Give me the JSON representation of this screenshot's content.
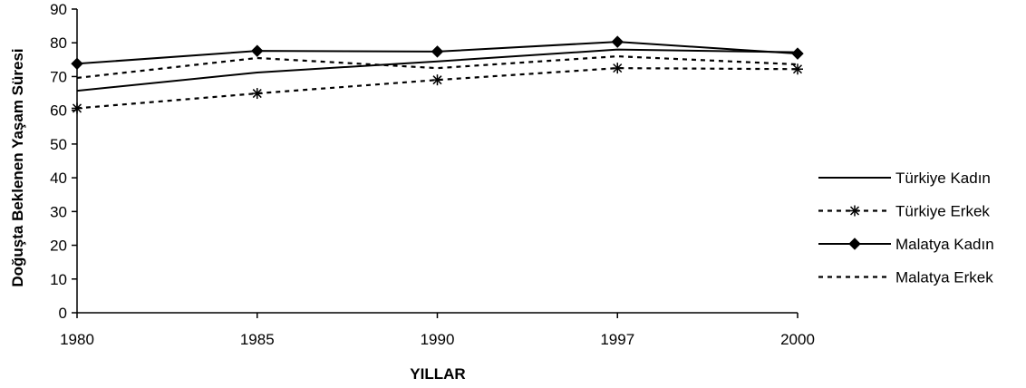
{
  "chart_data": {
    "type": "line",
    "title": "",
    "xlabel": "YILLAR",
    "ylabel": "Doğuşta Beklenen Yaşam Süresi",
    "categories": [
      "1980",
      "1985",
      "1990",
      "1997",
      "2000"
    ],
    "ylim": [
      0,
      90
    ],
    "yticks": [
      0,
      10,
      20,
      30,
      40,
      50,
      60,
      70,
      80,
      90
    ],
    "grid": false,
    "legend_position": "right",
    "series": [
      {
        "name": "Türkiye Kadın",
        "values": [
          65.8,
          71.2,
          74.5,
          78.0,
          77.2
        ],
        "line": "solid",
        "marker": "none",
        "color": "#000000"
      },
      {
        "name": "Türkiye Erkek",
        "values": [
          60.6,
          65.0,
          69.0,
          72.5,
          72.2
        ],
        "line": "dotted",
        "marker": "asterisk",
        "color": "#000000"
      },
      {
        "name": "Malatya Kadın",
        "values": [
          73.8,
          77.6,
          77.4,
          80.3,
          76.8
        ],
        "line": "solid",
        "marker": "diamond",
        "color": "#000000"
      },
      {
        "name": "Malatya Erkek",
        "values": [
          69.6,
          75.5,
          72.5,
          76.0,
          73.6
        ],
        "line": "dotted",
        "marker": "none",
        "color": "#000000"
      }
    ]
  }
}
